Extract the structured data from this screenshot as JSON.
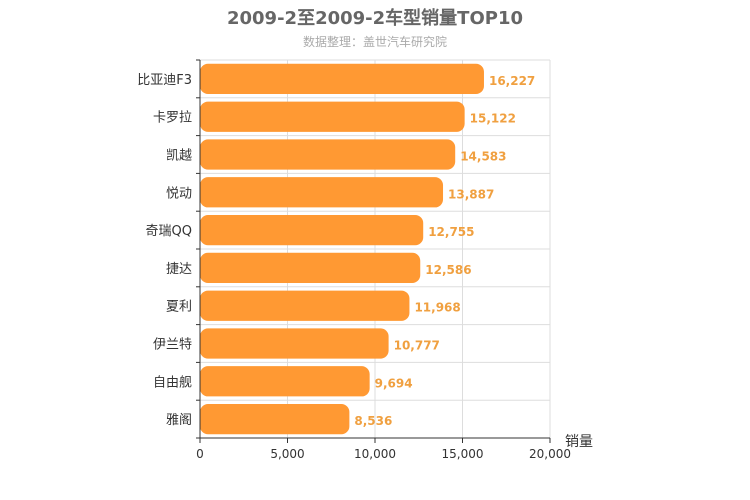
{
  "chart_data": {
    "type": "bar",
    "orientation": "horizontal",
    "title": "2009-2至2009-2车型销量TOP10",
    "subtitle": "数据整理：盖世汽车研究院",
    "xlabel": "销量",
    "ylabel": "",
    "xlim": [
      0,
      20000
    ],
    "x_ticks": [
      0,
      5000,
      10000,
      15000,
      20000
    ],
    "x_tick_labels": [
      "0",
      "5,000",
      "10,000",
      "15,000",
      "20,000"
    ],
    "grid": true,
    "categories": [
      "比亚迪F3",
      "卡罗拉",
      "凯越",
      "悦动",
      "奇瑞QQ",
      "捷达",
      "夏利",
      "伊兰特",
      "自由舰",
      "雅阁"
    ],
    "values": [
      16227,
      15122,
      14583,
      13887,
      12755,
      12586,
      11968,
      10777,
      9694,
      8536
    ],
    "value_labels": [
      "16,227",
      "15,122",
      "14,583",
      "13,887",
      "12,755",
      "12,586",
      "11,968",
      "10,777",
      "9,694",
      "8,536"
    ],
    "colors": {
      "bar": "#ff9933",
      "label": "#f0a040",
      "grid": "#dddddd",
      "axis": "#333333"
    }
  }
}
